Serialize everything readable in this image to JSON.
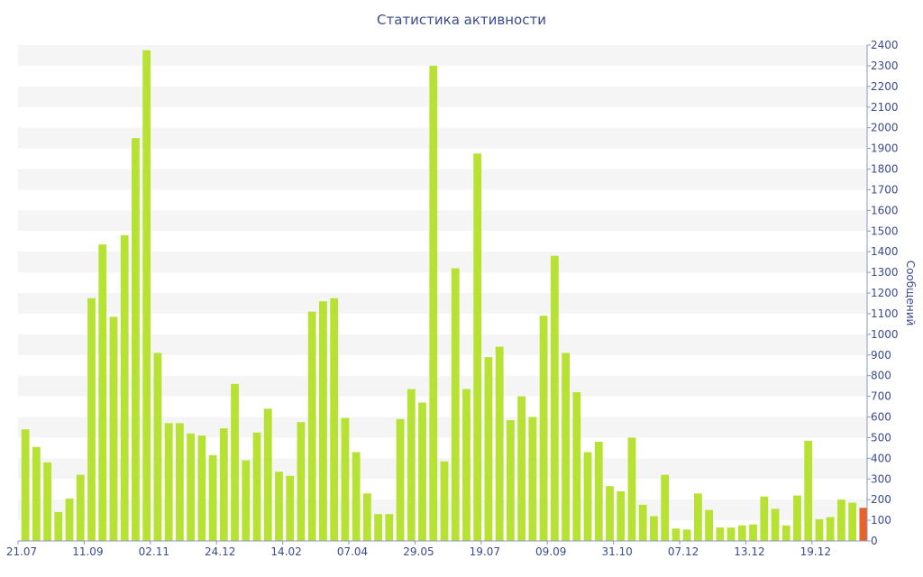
{
  "chart_data": {
    "type": "bar",
    "title": "Статистика активности",
    "ylabel": "Сообщений",
    "xlabel": "",
    "ylim": [
      0,
      2400
    ],
    "y_ticks": [
      0,
      100,
      200,
      300,
      400,
      500,
      600,
      700,
      800,
      900,
      1000,
      1100,
      1200,
      1300,
      1400,
      1500,
      1600,
      1700,
      1800,
      1900,
      2000,
      2100,
      2200,
      2300,
      2400
    ],
    "x_tick_labels": [
      {
        "label": "21.07",
        "index": 0
      },
      {
        "label": "11.09",
        "index": 6
      },
      {
        "label": "02.11",
        "index": 12
      },
      {
        "label": "24.12",
        "index": 18
      },
      {
        "label": "14.02",
        "index": 24
      },
      {
        "label": "07.04",
        "index": 30
      },
      {
        "label": "29.05",
        "index": 36
      },
      {
        "label": "19.07",
        "index": 42
      },
      {
        "label": "09.09",
        "index": 48
      },
      {
        "label": "31.10",
        "index": 54
      },
      {
        "label": "07.12",
        "index": 60
      },
      {
        "label": "13.12",
        "index": 66
      },
      {
        "label": "19.12",
        "index": 72
      }
    ],
    "values": [
      540,
      455,
      380,
      140,
      205,
      320,
      1175,
      1435,
      1085,
      1480,
      1950,
      2375,
      910,
      570,
      570,
      520,
      510,
      415,
      545,
      760,
      390,
      525,
      640,
      335,
      315,
      575,
      1110,
      1160,
      1175,
      595,
      430,
      230,
      130,
      130,
      590,
      735,
      670,
      2300,
      385,
      1320,
      735,
      1875,
      890,
      940,
      585,
      700,
      600,
      1090,
      1380,
      910,
      720,
      430,
      480,
      265,
      240,
      500,
      175,
      120,
      320,
      60,
      55,
      230,
      150,
      65,
      65,
      75,
      80,
      215,
      155,
      75,
      220,
      485,
      105,
      115,
      200,
      185,
      160
    ],
    "grid": true,
    "legend": "none",
    "colors": {
      "bar": "#b7e234",
      "last_bar": "#e8622a",
      "text": "#3b4a8c",
      "grid_band": "#f5f5f5",
      "axis": "#8899bb"
    }
  }
}
